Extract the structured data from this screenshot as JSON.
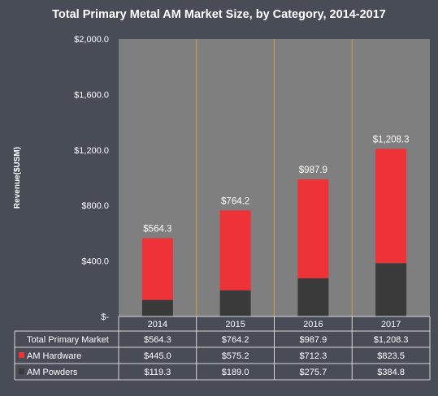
{
  "chart_data": {
    "type": "bar",
    "stacked": true,
    "title": "Total Primary Metal AM Market Size, by Category, 2014-2017",
    "ylabel": "Revenue($USM)",
    "xlabel": "",
    "categories": [
      "2014",
      "2015",
      "2016",
      "2017"
    ],
    "ylim": [
      0,
      2000
    ],
    "yticks": [
      0,
      400,
      800,
      1200,
      1600,
      2000
    ],
    "ytick_labels": [
      "$-",
      "$400.0",
      "$800.0",
      "$1,200.0",
      "$1,600.0",
      "$2,000.0"
    ],
    "series": [
      {
        "name": "AM Powders",
        "color": "#3a3a3a",
        "values": [
          119.3,
          189.0,
          275.7,
          384.8
        ]
      },
      {
        "name": "AM Hardware",
        "color": "#ee3338",
        "values": [
          445.0,
          575.2,
          712.3,
          823.5
        ]
      }
    ],
    "totals": [
      564.3,
      764.2,
      987.9,
      1208.3
    ],
    "total_labels": [
      "$564.3",
      "$764.2",
      "$987.9",
      "$1,208.3"
    ],
    "grid": false,
    "plot_background": "#7f7f7f",
    "separator_color": "#c8a24a",
    "data_table": {
      "rows": [
        {
          "label": "Total Primary Market",
          "swatch": "",
          "cells": [
            "$564.3",
            "$764.2",
            "$987.9",
            "$1,208.3"
          ]
        },
        {
          "label": "AM Hardware",
          "swatch": "#ee3338",
          "cells": [
            "$445.0",
            "$575.2",
            "$712.3",
            "$823.5"
          ]
        },
        {
          "label": "AM Powders",
          "swatch": "#3a3a3a",
          "cells": [
            "$119.3",
            "$189.0",
            "$275.7",
            "$384.8"
          ]
        }
      ]
    }
  }
}
